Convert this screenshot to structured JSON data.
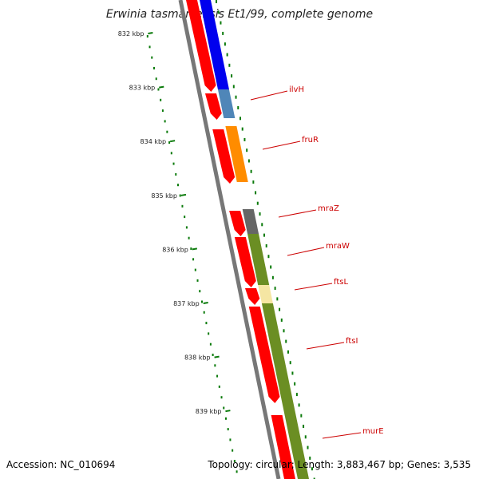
{
  "header": {
    "organism": "Erwinia tasmaniensis Et1/99",
    "suffix": ", complete genome"
  },
  "footer": {
    "accession": "Accession: NC_010694",
    "summary": "Topology: circular; Length: 3,883,467 bp; Genes: 3,535"
  },
  "ruler": {
    "ticks": [
      {
        "label": "832 kbp",
        "kbp": 832
      },
      {
        "label": "833 kbp",
        "kbp": 833
      },
      {
        "label": "834 kbp",
        "kbp": 834
      },
      {
        "label": "835 kbp",
        "kbp": 835
      },
      {
        "label": "836 kbp",
        "kbp": 836
      },
      {
        "label": "837 kbp",
        "kbp": 837
      },
      {
        "label": "838 kbp",
        "kbp": 838
      },
      {
        "label": "839 kbp",
        "kbp": 839
      }
    ]
  },
  "gene_labels": [
    {
      "name": "ilvH",
      "color": "#cc0000"
    },
    {
      "name": "fruR",
      "color": "#cc0000"
    },
    {
      "name": "mraZ",
      "color": "#cc0000"
    },
    {
      "name": "mraW",
      "color": "#cc0000"
    },
    {
      "name": "ftsL",
      "color": "#cc0000"
    },
    {
      "name": "ftsI",
      "color": "#cc0000"
    },
    {
      "name": "murE",
      "color": "#cc0000"
    }
  ],
  "colors": {
    "cds": "#ff0000",
    "backbone": "#777777",
    "tick": "#0a7a0a",
    "label_line": "#cc0000",
    "cog_blue": "#0000ee",
    "cog_steel": "#4f86b8",
    "cog_orange": "#ff8c00",
    "cog_gray": "#666666",
    "cog_olive": "#6b8e23",
    "cog_khaki": "#f5e6a3"
  }
}
